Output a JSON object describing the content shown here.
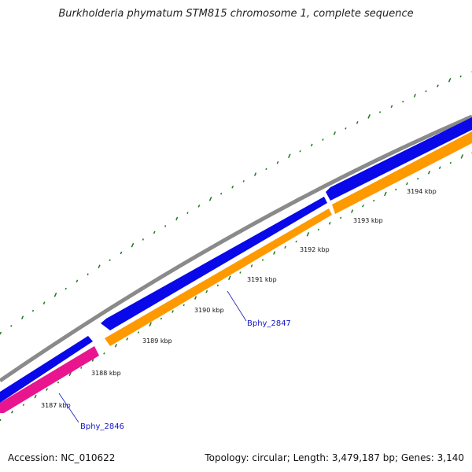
{
  "title": "Burkholderia phymatum STM815 chromosome 1, complete sequence",
  "footer": {
    "accession": "Accession: NC_010622",
    "info": "Topology: circular; Length: 3,479,187 bp; Genes: 3,140"
  },
  "ticks": [
    "3187 kbp",
    "3188 kbp",
    "3189 kbp",
    "3190 kbp",
    "3191 kbp",
    "3192 kbp",
    "3193 kbp",
    "3194 kbp"
  ],
  "genes": [
    "Bphy_2846",
    "Bphy_2847"
  ],
  "colors": {
    "backbone": "#8a8a8a",
    "blue_feature": "#0808e8",
    "orange_feature": "#ff9900",
    "pink_feature": "#e8158f",
    "gc_skew": "#1a7a1a"
  }
}
